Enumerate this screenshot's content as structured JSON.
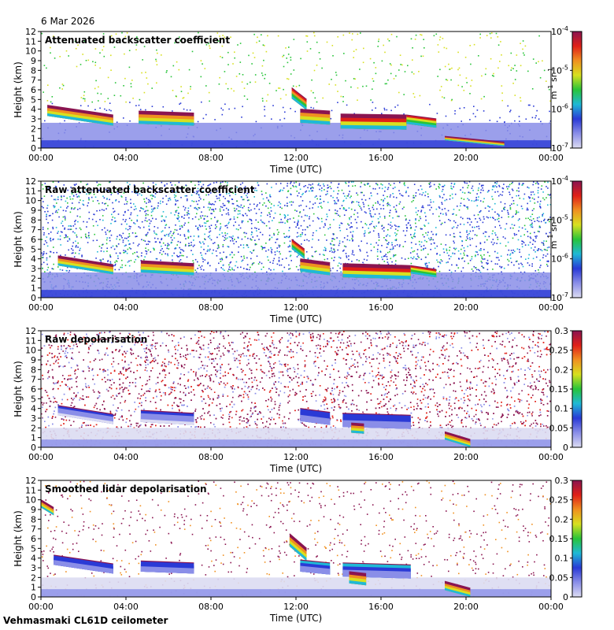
{
  "date": "6 Mar 2026",
  "footer": "Vehmasmaki CL61D ceilometer",
  "colors": {
    "rainbow": [
      "#dcdcf2",
      "#8a8ee8",
      "#2a3ad6",
      "#1fb9d6",
      "#28c43a",
      "#d8e020",
      "#f09020",
      "#e02018",
      "#8a1450"
    ],
    "background": "#ffffff"
  },
  "chart_data": [
    {
      "type": "heatmap",
      "title": "Attenuated backscatter coefficient",
      "xlabel": "Time (UTC)",
      "ylabel": "Height (km)",
      "x_ticks": [
        "00:00",
        "04:00",
        "08:00",
        "12:00",
        "16:00",
        "20:00",
        "00:00"
      ],
      "xlim_hours": [
        0,
        24
      ],
      "ylim_km": [
        0,
        12
      ],
      "y_ticks": [
        0,
        1,
        2,
        3,
        4,
        5,
        6,
        7,
        8,
        9,
        10,
        11,
        12
      ],
      "colorbar": {
        "scale": "log",
        "range": [
          1e-07,
          0.0001
        ],
        "tick_labels": [
          [
            "10",
            "-7"
          ],
          [
            "10",
            "-6"
          ],
          [
            "10",
            "-5"
          ],
          [
            "10",
            "-4"
          ]
        ],
        "units": [
          "m",
          "-1",
          " sr",
          "-1"
        ]
      },
      "features": [
        {
          "t0": 0.3,
          "t1": 3.4,
          "h_top_start": 4.4,
          "h_top_end": 3.4,
          "thickness": 1.1,
          "intensity": 0.95
        },
        {
          "t0": 4.6,
          "t1": 7.2,
          "h_top_start": 3.8,
          "h_top_end": 3.6,
          "thickness": 1.3,
          "intensity": 0.9
        },
        {
          "t0": 11.8,
          "t1": 12.5,
          "h_top_start": 6.2,
          "h_top_end": 5.0,
          "thickness": 1.1,
          "intensity": 0.85
        },
        {
          "t0": 12.2,
          "t1": 13.6,
          "h_top_start": 4.0,
          "h_top_end": 3.8,
          "thickness": 1.4,
          "intensity": 0.95
        },
        {
          "t0": 14.1,
          "t1": 17.2,
          "h_top_start": 3.5,
          "h_top_end": 3.4,
          "thickness": 1.5,
          "intensity": 0.98
        },
        {
          "t0": 17.2,
          "t1": 18.6,
          "h_top_start": 3.4,
          "h_top_end": 3.0,
          "thickness": 0.9,
          "intensity": 0.8
        },
        {
          "t0": 19.0,
          "t1": 21.8,
          "h_top_start": 1.2,
          "h_top_end": 0.6,
          "thickness": 0.4,
          "intensity": 0.9
        }
      ]
    },
    {
      "type": "heatmap",
      "title": "Raw attenuated backscatter coefficient",
      "xlabel": "Time (UTC)",
      "ylabel": "Height (km)",
      "x_ticks": [
        "00:00",
        "04:00",
        "08:00",
        "12:00",
        "16:00",
        "20:00",
        "00:00"
      ],
      "xlim_hours": [
        0,
        24
      ],
      "ylim_km": [
        0,
        12
      ],
      "y_ticks": [
        0,
        1,
        2,
        3,
        4,
        5,
        6,
        7,
        8,
        9,
        10,
        11,
        12
      ],
      "colorbar": {
        "scale": "log",
        "range": [
          1e-07,
          0.0001
        ],
        "tick_labels": [
          [
            "10",
            "-7"
          ],
          [
            "10",
            "-6"
          ],
          [
            "10",
            "-5"
          ],
          [
            "10",
            "-4"
          ]
        ],
        "units": [
          "m",
          "-1",
          " sr",
          "-1"
        ]
      },
      "features": [
        {
          "t0": 0.8,
          "t1": 3.4,
          "h_top_start": 4.3,
          "h_top_end": 3.4,
          "thickness": 1.0,
          "intensity": 0.95
        },
        {
          "t0": 4.7,
          "t1": 7.2,
          "h_top_start": 3.8,
          "h_top_end": 3.5,
          "thickness": 1.2,
          "intensity": 0.9
        },
        {
          "t0": 11.8,
          "t1": 12.4,
          "h_top_start": 6.0,
          "h_top_end": 5.0,
          "thickness": 1.0,
          "intensity": 0.85
        },
        {
          "t0": 12.2,
          "t1": 13.6,
          "h_top_start": 4.0,
          "h_top_end": 3.6,
          "thickness": 1.3,
          "intensity": 0.95
        },
        {
          "t0": 14.2,
          "t1": 17.4,
          "h_top_start": 3.5,
          "h_top_end": 3.3,
          "thickness": 1.4,
          "intensity": 0.98
        },
        {
          "t0": 17.4,
          "t1": 18.6,
          "h_top_start": 3.3,
          "h_top_end": 2.9,
          "thickness": 0.8,
          "intensity": 0.8
        }
      ]
    },
    {
      "type": "heatmap",
      "title": "Raw depolarisation",
      "xlabel": "Time (UTC)",
      "ylabel": "Height (km)",
      "x_ticks": [
        "00:00",
        "04:00",
        "08:00",
        "12:00",
        "16:00",
        "20:00",
        "00:00"
      ],
      "xlim_hours": [
        0,
        24
      ],
      "ylim_km": [
        0,
        12
      ],
      "y_ticks": [
        0,
        1,
        2,
        3,
        4,
        5,
        6,
        7,
        8,
        9,
        10,
        11,
        12
      ],
      "colorbar": {
        "scale": "linear",
        "range": [
          0,
          0.3
        ],
        "tick_labels": [
          "0",
          "0.05",
          "0.1",
          "0.15",
          "0.2",
          "0.25",
          "0.3"
        ]
      },
      "features": [
        {
          "t0": 0.8,
          "t1": 3.4,
          "h_top_start": 4.3,
          "h_top_end": 3.4,
          "thickness": 1.0,
          "intensity": 0.25
        },
        {
          "t0": 4.7,
          "t1": 7.2,
          "h_top_start": 3.8,
          "h_top_end": 3.5,
          "thickness": 1.2,
          "intensity": 0.25
        },
        {
          "t0": 12.2,
          "t1": 13.6,
          "h_top_start": 4.0,
          "h_top_end": 3.6,
          "thickness": 1.3,
          "intensity": 0.3
        },
        {
          "t0": 14.2,
          "t1": 17.4,
          "h_top_start": 3.5,
          "h_top_end": 3.3,
          "thickness": 1.4,
          "intensity": 0.3
        },
        {
          "t0": 14.6,
          "t1": 15.2,
          "h_top_start": 2.5,
          "h_top_end": 2.4,
          "thickness": 1.0,
          "intensity": 0.95
        },
        {
          "t0": 19.0,
          "t1": 20.2,
          "h_top_start": 1.6,
          "h_top_end": 0.8,
          "thickness": 0.8,
          "intensity": 0.9
        }
      ]
    },
    {
      "type": "heatmap",
      "title": "Smoothed lidar depolarisation",
      "xlabel": "Time (UTC)",
      "ylabel": "Height (km)",
      "x_ticks": [
        "00:00",
        "04:00",
        "08:00",
        "12:00",
        "16:00",
        "20:00",
        "00:00"
      ],
      "xlim_hours": [
        0,
        24
      ],
      "ylim_km": [
        0,
        12
      ],
      "y_ticks": [
        0,
        1,
        2,
        3,
        4,
        5,
        6,
        7,
        8,
        9,
        10,
        11,
        12
      ],
      "colorbar": {
        "scale": "linear",
        "range": [
          0,
          0.3
        ],
        "tick_labels": [
          "0",
          "0.05",
          "0.1",
          "0.15",
          "0.2",
          "0.25",
          "0.3"
        ]
      },
      "features": [
        {
          "t0": 0.6,
          "t1": 3.4,
          "h_top_start": 4.3,
          "h_top_end": 3.4,
          "thickness": 1.0,
          "intensity": 0.3
        },
        {
          "t0": 4.7,
          "t1": 7.2,
          "h_top_start": 3.7,
          "h_top_end": 3.5,
          "thickness": 1.1,
          "intensity": 0.3
        },
        {
          "t0": 0.0,
          "t1": 0.6,
          "h_top_start": 10.0,
          "h_top_end": 9.2,
          "thickness": 0.8,
          "intensity": 0.95
        },
        {
          "t0": 11.7,
          "t1": 12.5,
          "h_top_start": 6.5,
          "h_top_end": 5.0,
          "thickness": 1.3,
          "intensity": 0.95
        },
        {
          "t0": 12.2,
          "t1": 13.6,
          "h_top_start": 3.8,
          "h_top_end": 3.5,
          "thickness": 1.2,
          "intensity": 0.35
        },
        {
          "t0": 14.2,
          "t1": 17.4,
          "h_top_start": 3.5,
          "h_top_end": 3.3,
          "thickness": 1.4,
          "intensity": 0.35
        },
        {
          "t0": 14.5,
          "t1": 15.3,
          "h_top_start": 2.6,
          "h_top_end": 2.4,
          "thickness": 1.2,
          "intensity": 0.95
        },
        {
          "t0": 19.0,
          "t1": 20.2,
          "h_top_start": 1.6,
          "h_top_end": 0.9,
          "thickness": 0.9,
          "intensity": 0.95
        }
      ]
    }
  ]
}
